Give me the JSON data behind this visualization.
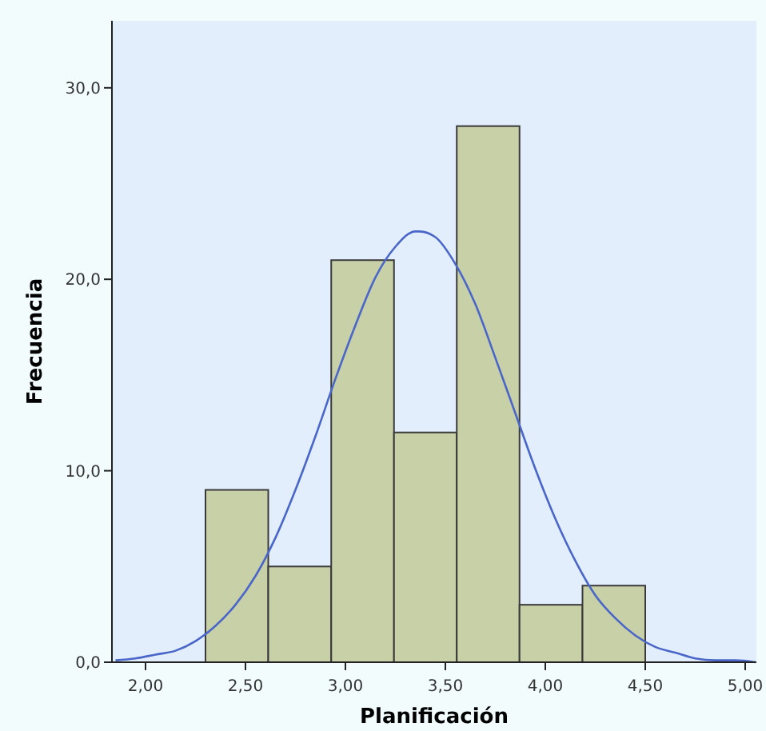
{
  "chart_data": {
    "type": "histogram",
    "xlabel": "Planificación",
    "ylabel": "Frecuencia",
    "bins": [
      2.3,
      2.614,
      2.929,
      3.243,
      3.557,
      3.871,
      4.186,
      4.5
    ],
    "values": [
      9,
      5,
      21,
      12,
      28,
      3,
      4
    ],
    "color": "#c8d0a8",
    "series": [
      {
        "type": "line",
        "color": "#4a66c8",
        "x": [
          1.85,
          1.95,
          2.05,
          2.15,
          2.25,
          2.35,
          2.45,
          2.55,
          2.65,
          2.75,
          2.85,
          2.95,
          3.05,
          3.15,
          3.25,
          3.35,
          3.37,
          3.45,
          3.55,
          3.65,
          3.75,
          3.85,
          3.95,
          4.05,
          4.15,
          4.25,
          4.35,
          4.45,
          4.55,
          4.65,
          4.75,
          4.85,
          4.95,
          5.05
        ],
        "values": [
          0.1,
          0.2,
          0.4,
          0.6,
          1.1,
          1.9,
          3.0,
          4.5,
          6.5,
          9.0,
          11.8,
          14.8,
          17.6,
          20.1,
          21.7,
          22.5,
          22.5,
          22.2,
          20.8,
          18.7,
          15.9,
          13.0,
          10.1,
          7.5,
          5.3,
          3.5,
          2.3,
          1.4,
          0.8,
          0.5,
          0.2,
          0.1,
          0.1,
          0.0
        ]
      }
    ],
    "xlim": [
      1.832,
      5.056
    ],
    "ylim": [
      0,
      33.5
    ],
    "xticks": [
      {
        "value": 2,
        "label": "2,00"
      },
      {
        "value": 2.5,
        "label": "2,50"
      },
      {
        "value": 3,
        "label": "3,00"
      },
      {
        "value": 3.5,
        "label": "3,50"
      },
      {
        "value": 4,
        "label": "4,00"
      },
      {
        "value": 4.5,
        "label": "4,50"
      },
      {
        "value": 5,
        "label": "5,00"
      }
    ],
    "yticks": [
      {
        "value": 0,
        "label": "0,0"
      },
      {
        "value": 10,
        "label": "10,0"
      },
      {
        "value": 20,
        "label": "20,0"
      },
      {
        "value": 30,
        "label": "30,0"
      }
    ],
    "grid": false
  }
}
